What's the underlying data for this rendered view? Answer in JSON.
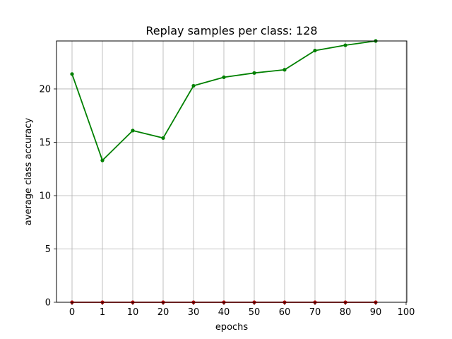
{
  "chart_data": {
    "type": "line",
    "title": "Replay samples per class: 128",
    "xlabel": "epochs",
    "ylabel": "average class accuracy",
    "x_tick_labels": [
      "0",
      "1",
      "10",
      "20",
      "30",
      "40",
      "50",
      "60",
      "70",
      "80",
      "90",
      "100"
    ],
    "y_ticks": [
      0,
      5,
      10,
      15,
      20
    ],
    "ylim": [
      0,
      24.5
    ],
    "grid": true,
    "legend": "none",
    "categories": [
      "0",
      "1",
      "10",
      "20",
      "30",
      "40",
      "50",
      "60",
      "70",
      "80",
      "90"
    ],
    "series": [
      {
        "color": "#008000",
        "marker": "dot",
        "values": [
          21.4,
          13.3,
          16.1,
          15.4,
          20.3,
          21.1,
          21.5,
          21.8,
          23.6,
          24.1,
          24.5
        ]
      },
      {
        "color": "#c00000",
        "marker": "dot",
        "values": [
          0,
          0,
          0,
          0,
          0,
          0,
          0,
          0,
          0,
          0,
          0
        ]
      }
    ]
  }
}
